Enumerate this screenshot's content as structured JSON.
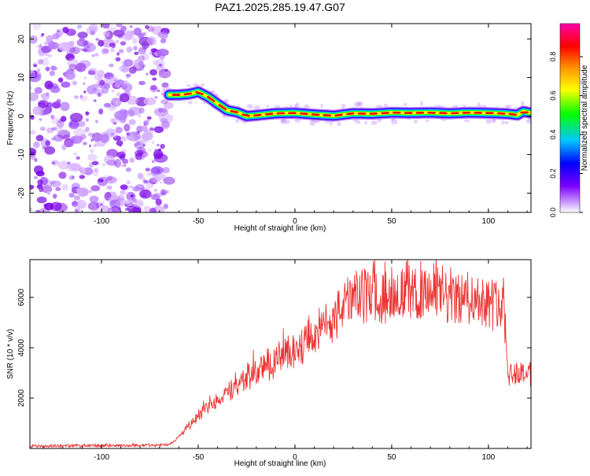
{
  "title": "PAZ1.2025.285.19.47.G07",
  "colors": {
    "noise": "#8a2be2",
    "snr_line": "#ee3333",
    "axis": "#000000",
    "colorbar": [
      "#ffffff",
      "#7d00ff",
      "#0000ff",
      "#00c8ff",
      "#00ff00",
      "#ffff00",
      "#ff9900",
      "#ff0000",
      "#ff00aa"
    ]
  },
  "chart_data": [
    {
      "type": "heatmap",
      "title": "PAZ1.2025.285.19.47.G07",
      "xlabel": "Height of straight line (km)",
      "ylabel": "Frequency (Hz)",
      "xlim": [
        -137,
        122
      ],
      "ylim": [
        -25,
        24
      ],
      "xticks": [
        -100,
        -50,
        0,
        50,
        100
      ],
      "yticks": [
        -20,
        -10,
        0,
        10,
        20
      ],
      "noise_region_x": [
        -137,
        -65
      ],
      "ridge": {
        "x": [
          -65,
          -60,
          -55,
          -50,
          -45,
          -40,
          -35,
          -30,
          -25,
          -20,
          -10,
          0,
          10,
          20,
          30,
          40,
          50,
          60,
          70,
          80,
          90,
          100,
          110,
          115,
          118,
          122
        ],
        "freq": [
          5.5,
          5.5,
          5.7,
          6.3,
          5.0,
          3.2,
          1.5,
          1.0,
          0.0,
          0.2,
          0.7,
          0.8,
          0.4,
          0.1,
          0.7,
          0.6,
          0.9,
          0.8,
          0.9,
          0.7,
          0.9,
          0.8,
          0.6,
          0.3,
          1.2,
          0.8
        ]
      },
      "colorbar": {
        "label": "Normalized spectral amplitude",
        "range": [
          0.0,
          0.97
        ],
        "ticks": [
          0.0,
          0.2,
          0.4,
          0.6,
          0.8
        ]
      }
    },
    {
      "type": "line",
      "xlabel": "Height of straight line (km)",
      "ylabel": "SNR (10 * v/v)",
      "xlim": [
        -137,
        122
      ],
      "ylim": [
        0,
        7500
      ],
      "xticks": [
        -100,
        -50,
        0,
        50,
        100
      ],
      "yticks": [
        2000,
        4000,
        6000
      ],
      "series": [
        {
          "name": "SNR",
          "x": [
            -137,
            -120,
            -100,
            -80,
            -65,
            -60,
            -55,
            -50,
            -40,
            -30,
            -20,
            -10,
            0,
            10,
            20,
            25,
            30,
            40,
            50,
            60,
            70,
            80,
            90,
            100,
            108,
            110,
            112,
            115,
            122
          ],
          "values": [
            100,
            100,
            120,
            120,
            150,
            450,
            900,
            1300,
            1900,
            2500,
            3050,
            3500,
            3950,
            4500,
            5150,
            5750,
            5900,
            6200,
            6200,
            6150,
            6150,
            6000,
            6000,
            5800,
            5900,
            3200,
            3000,
            3000,
            3000
          ]
        }
      ]
    }
  ]
}
